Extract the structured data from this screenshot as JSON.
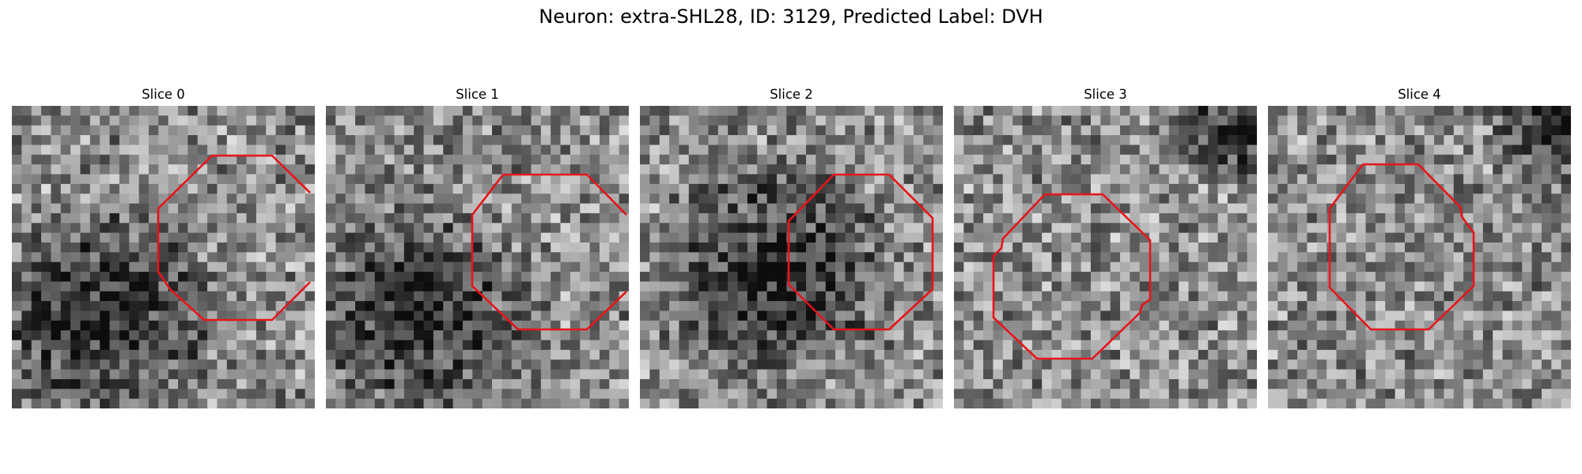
{
  "figure": {
    "suptitle": "Neuron: extra-SHL28, ID: 3129, Predicted Label: DVH"
  },
  "panels": [
    {
      "title": "Slice 0",
      "seed": 11,
      "darkness_focus": "lower-left"
    },
    {
      "title": "Slice 1",
      "seed": 23,
      "darkness_focus": "lower-left"
    },
    {
      "title": "Slice 2",
      "seed": 37,
      "darkness_focus": "center"
    },
    {
      "title": "Slice 3",
      "seed": 41,
      "darkness_focus": "top-right"
    },
    {
      "title": "Slice 4",
      "seed": 53,
      "darkness_focus": "top-right"
    }
  ],
  "style": {
    "outline_color": "#e8141a",
    "colormap": "gray"
  }
}
